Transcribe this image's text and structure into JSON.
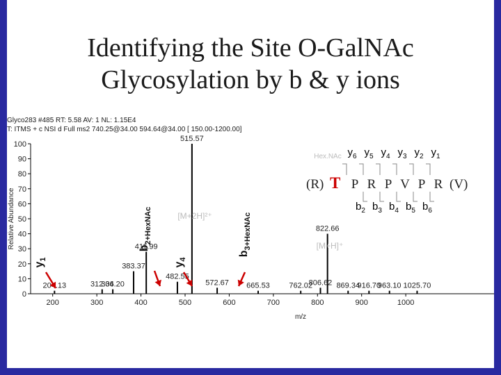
{
  "slide": {
    "title_line1": "Identifying the Site O-GalNAc",
    "title_line2": "Glycosylation by b & y ions"
  },
  "spectrum_header": {
    "line1": "Glyco283 #485 RT: 5.58 AV: 1 NL: 1.15E4",
    "line2": "T: ITMS + c NSI d Full ms2 740.25@34.00 594.64@34.00 [ 150.00-1200.00]"
  },
  "colors": {
    "frame": "#2929a0",
    "accent": "#cc0000",
    "bars": "#000000"
  },
  "chart_data": {
    "type": "bar",
    "xlabel": "m/z",
    "ylabel": "Relative Abundance",
    "xlim": [
      150,
      1200
    ],
    "ylim": [
      0,
      100
    ],
    "x_ticks": [
      200,
      300,
      400,
      500,
      600,
      700,
      800,
      900,
      1000
    ],
    "y_ticks": [
      0,
      10,
      20,
      30,
      40,
      50,
      60,
      70,
      80,
      90,
      100
    ],
    "grid": false,
    "peaks": [
      {
        "mz": 204.13,
        "intensity": 2
      },
      {
        "mz": 312.04,
        "intensity": 3
      },
      {
        "mz": 336.2,
        "intensity": 3
      },
      {
        "mz": 383.37,
        "intensity": 15
      },
      {
        "mz": 411.99,
        "intensity": 28
      },
      {
        "mz": 482.55,
        "intensity": 8
      },
      {
        "mz": 515.57,
        "intensity": 100
      },
      {
        "mz": 572.67,
        "intensity": 4
      },
      {
        "mz": 665.53,
        "intensity": 2
      },
      {
        "mz": 762.02,
        "intensity": 2
      },
      {
        "mz": 806.62,
        "intensity": 4
      },
      {
        "mz": 822.66,
        "intensity": 40
      },
      {
        "mz": 869.34,
        "intensity": 2
      },
      {
        "mz": 916.7,
        "intensity": 2
      },
      {
        "mz": 963.1,
        "intensity": 2
      },
      {
        "mz": 1025.7,
        "intensity": 2
      }
    ],
    "peak_labels": [
      {
        "text": "204.13",
        "mz": 204.13,
        "y": 2
      },
      {
        "text": "312.04",
        "mz": 312.04,
        "y": 3
      },
      {
        "text": "336.20",
        "mz": 336.2,
        "y": 3
      },
      {
        "text": "383.37",
        "mz": 383.37,
        "y": 15
      },
      {
        "text": "411.99",
        "mz": 411.99,
        "y": 28
      },
      {
        "text": "482.55",
        "mz": 482.55,
        "y": 8
      },
      {
        "text": "515.57",
        "mz": 515.57,
        "y": 100
      },
      {
        "text": "572.67",
        "mz": 572.67,
        "y": 4
      },
      {
        "text": "665.53",
        "mz": 665.53,
        "y": 2
      },
      {
        "text": "762.02",
        "mz": 762.02,
        "y": 2
      },
      {
        "text": "806.62",
        "mz": 806.62,
        "y": 4
      },
      {
        "text": "822.66",
        "mz": 822.66,
        "y": 40
      },
      {
        "text": "869.34",
        "mz": 869.34,
        "y": 2
      },
      {
        "text": "916.70",
        "mz": 916.7,
        "y": 2
      },
      {
        "text": "963.10",
        "mz": 963.1,
        "y": 2
      },
      {
        "text": "1025.70",
        "mz": 1025.7,
        "y": 2
      }
    ],
    "annotations": {
      "m2h": "[M+2H]²⁺",
      "mh": "[M+H]⁺",
      "y_ion_labels": [
        "y6",
        "y5",
        "y4",
        "y3",
        "y2",
        "y1"
      ],
      "b_ion_labels": [
        "b2",
        "b3",
        "b4",
        "b5",
        "b6"
      ],
      "hexnac_tag": "Hex.NAc",
      "sequence": {
        "prefix": "(R)",
        "site": "T",
        "residues": [
          "P",
          "R",
          "P",
          "V",
          "P",
          "R"
        ],
        "suffix": "(V)"
      },
      "arrow_labels": [
        {
          "main": "y",
          "sub": "1",
          "mz": 204.13
        },
        {
          "main": "b",
          "sub": "2+HexNAc",
          "mz": 383.37
        },
        {
          "main": "y",
          "sub": "4",
          "mz": 482.55
        },
        {
          "main": "b",
          "sub": "3+HexNAc",
          "mz": 572.67
        }
      ]
    }
  }
}
